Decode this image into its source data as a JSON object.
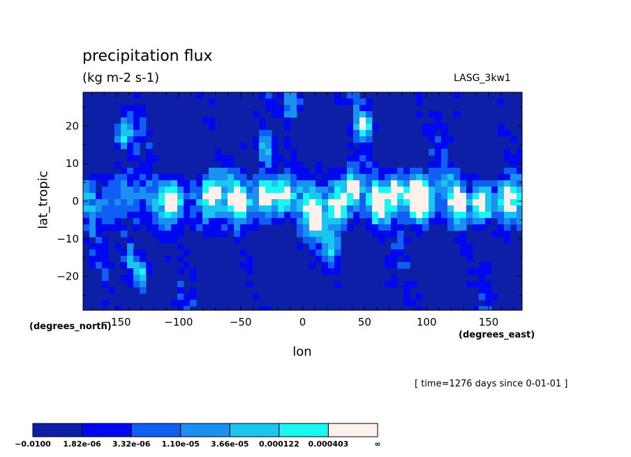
{
  "chart_data": {
    "type": "heatmap",
    "title": "precipitation flux",
    "units": "(kg m-2 s-1)",
    "model": "LASG_3kw1",
    "xlabel": "lon",
    "ylabel": "lat_tropic",
    "x_unit_label": "(degrees_east)",
    "y_unit_label": "(degrees_north)",
    "timestamp": "[ time=1276 days since 0-01-01 ]",
    "xlim": [
      -177,
      177
    ],
    "ylim": [
      -29,
      29
    ],
    "x_ticks": [
      -150,
      -100,
      -50,
      0,
      50,
      100,
      150
    ],
    "x_tick_labels": [
      "−150",
      "−100",
      "−50",
      "0",
      "50",
      "100",
      "150"
    ],
    "y_ticks": [
      -20,
      -10,
      0,
      10,
      20
    ],
    "y_tick_labels": [
      "−20",
      "−10",
      "0",
      "10",
      "20"
    ],
    "colorbar": {
      "bin_colors": [
        "#0c1fa6",
        "#0008f0",
        "#0f5ff5",
        "#1a90f2",
        "#18c6ef",
        "#18f7f2",
        "#fff0ec"
      ],
      "boundary_labels": [
        "−0.0100",
        "1.82e-06",
        "3.32e-06",
        "1.10e-05",
        "3.66e-05",
        "0.000122",
        "0.000403",
        "∞"
      ]
    },
    "field_features": [
      {
        "lon": -145,
        "lat": 18,
        "level": 6
      },
      {
        "lon": -140,
        "lat": -15,
        "level": 5
      },
      {
        "lon": -130,
        "lat": -20,
        "level": 6
      },
      {
        "lon": -105,
        "lat": 0,
        "level": 6
      },
      {
        "lon": -75,
        "lat": 2,
        "level": 6
      },
      {
        "lon": -50,
        "lat": 0,
        "level": 6
      },
      {
        "lon": -30,
        "lat": 14,
        "level": 6
      },
      {
        "lon": -30,
        "lat": 2,
        "level": 6
      },
      {
        "lon": -15,
        "lat": 2,
        "level": 6
      },
      {
        "lon": -8,
        "lat": 27,
        "level": 6
      },
      {
        "lon": 10,
        "lat": -5,
        "level": 6
      },
      {
        "lon": 25,
        "lat": -12,
        "level": 6
      },
      {
        "lon": 28,
        "lat": -2,
        "level": 6
      },
      {
        "lon": 40,
        "lat": 4,
        "level": 6
      },
      {
        "lon": 50,
        "lat": 20,
        "level": 6
      },
      {
        "lon": 60,
        "lat": -1,
        "level": 6
      },
      {
        "lon": 75,
        "lat": 3,
        "level": 6
      },
      {
        "lon": 90,
        "lat": 2,
        "level": 6
      },
      {
        "lon": 97,
        "lat": 0,
        "level": 6
      },
      {
        "lon": 125,
        "lat": 0,
        "level": 6
      },
      {
        "lon": 145,
        "lat": -1,
        "level": 6
      },
      {
        "lon": 165,
        "lat": 0,
        "level": 6
      }
    ]
  }
}
